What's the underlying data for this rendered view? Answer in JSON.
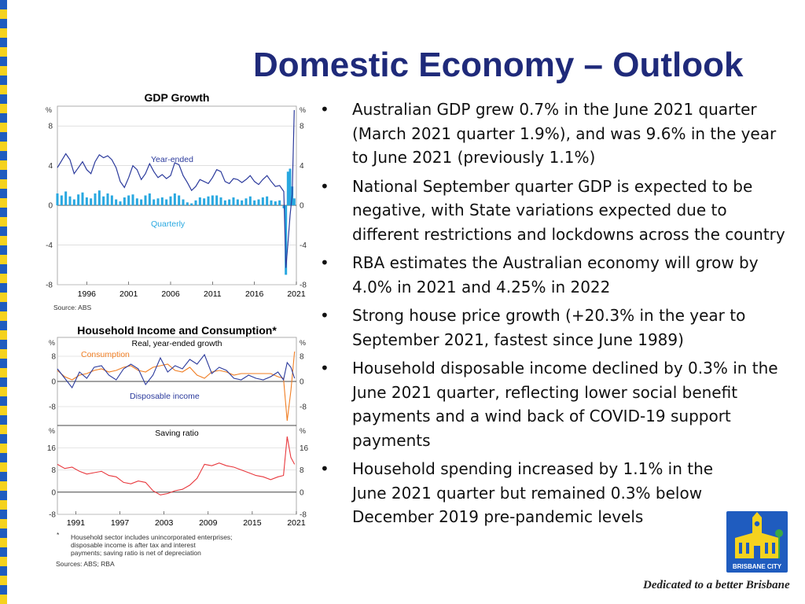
{
  "slide": {
    "title": "Domestic Economy – Outlook",
    "bullets": [
      "Australian GDP grew 0.7% in the June 2021 quarter (March 2021 quarter 1.9%), and was 9.6% in the year to June 2021 (previously 1.1%)",
      "National September quarter GDP is expected to be negative, with State variations expected due to different restrictions and lockdowns across the country",
      "RBA estimates the Australian economy  will grow by 4.0% in 2021 and 4.25% in 2022",
      "Strong house price growth (+20.3% in the year to September 2021, fastest since June 1989)",
      "Household disposable income declined by 0.3% in the June 2021 quarter, reflecting lower social benefit payments and a wind back of COVID-19 support payments",
      "Household spending increased by 1.1% in the June 2021 quarter but remained 0.3% below December 2019 pre-pandemic levels"
    ],
    "bullet_marker": "•",
    "logo_text": "BRISBANE CITY",
    "logo_icon": "city-hall-clock-tower-icon",
    "tagline": "Dedicated to a better Brisbane",
    "colors": {
      "title": "#1f2a7a",
      "edge_blue": "#1f5cbf",
      "edge_yellow": "#f5d21e"
    }
  },
  "chart_data": [
    {
      "type": "bar",
      "title": "GDP Growth",
      "unit_left": "%",
      "unit_right": "%",
      "ylim": [
        -8,
        10
      ],
      "yticks": [
        8,
        4,
        0,
        -4,
        -8
      ],
      "xlim": [
        1993,
        2021.5
      ],
      "xticks": [
        "1996",
        "2001",
        "2006",
        "2011",
        "2016",
        "2021"
      ],
      "source": "Source:   ABS",
      "series": [
        {
          "name": "Year-ended",
          "kind": "line",
          "color": "#2b3a9c",
          "x": [
            1993,
            1993.5,
            1994,
            1994.5,
            1995,
            1995.5,
            1996,
            1996.5,
            1997,
            1997.5,
            1998,
            1998.5,
            1999,
            1999.5,
            2000,
            2000.5,
            2001,
            2001.5,
            2002,
            2002.5,
            2003,
            2003.5,
            2004,
            2004.5,
            2005,
            2005.5,
            2006,
            2006.5,
            2007,
            2007.5,
            2008,
            2008.5,
            2009,
            2009.5,
            2010,
            2010.5,
            2011,
            2011.5,
            2012,
            2012.5,
            2013,
            2013.5,
            2014,
            2014.5,
            2015,
            2015.5,
            2016,
            2016.5,
            2017,
            2017.5,
            2018,
            2018.5,
            2019,
            2019.5,
            2020,
            2020.25,
            2020.5,
            2020.75,
            2021,
            2021.25
          ],
          "y": [
            3.8,
            4.5,
            5.2,
            4.6,
            3.2,
            3.8,
            4.4,
            3.6,
            3.2,
            4.4,
            5.1,
            4.8,
            5.0,
            4.6,
            3.8,
            2.4,
            1.8,
            2.8,
            4.0,
            3.6,
            2.6,
            3.2,
            4.2,
            3.4,
            2.8,
            3.1,
            2.7,
            3.0,
            4.3,
            4.1,
            3.0,
            2.3,
            1.5,
            1.9,
            2.6,
            2.4,
            2.2,
            2.8,
            3.6,
            3.4,
            2.4,
            2.2,
            2.7,
            2.6,
            2.3,
            2.6,
            3.0,
            2.4,
            2.1,
            2.6,
            3.0,
            2.4,
            1.9,
            2.0,
            1.4,
            -6.3,
            -3.8,
            -1.0,
            1.1,
            9.6
          ]
        },
        {
          "name": "Quarterly",
          "kind": "bar",
          "color": "#29a8e0",
          "x": [
            1993,
            1993.5,
            1994,
            1994.5,
            1995,
            1995.5,
            1996,
            1996.5,
            1997,
            1997.5,
            1998,
            1998.5,
            1999,
            1999.5,
            2000,
            2000.5,
            2001,
            2001.5,
            2002,
            2002.5,
            2003,
            2003.5,
            2004,
            2004.5,
            2005,
            2005.5,
            2006,
            2006.5,
            2007,
            2007.5,
            2008,
            2008.5,
            2009,
            2009.5,
            2010,
            2010.5,
            2011,
            2011.5,
            2012,
            2012.5,
            2013,
            2013.5,
            2014,
            2014.5,
            2015,
            2015.5,
            2016,
            2016.5,
            2017,
            2017.5,
            2018,
            2018.5,
            2019,
            2019.5,
            2020,
            2020.25,
            2020.5,
            2020.75,
            2021,
            2021.25
          ],
          "y": [
            1.2,
            1.0,
            1.4,
            0.9,
            0.6,
            1.1,
            1.3,
            0.8,
            0.7,
            1.2,
            1.5,
            0.9,
            1.2,
            1.0,
            0.6,
            0.4,
            0.8,
            1.0,
            1.1,
            0.7,
            0.6,
            1.0,
            1.2,
            0.6,
            0.7,
            0.8,
            0.6,
            0.9,
            1.2,
            1.0,
            0.6,
            0.3,
            0.2,
            0.5,
            0.8,
            0.7,
            0.9,
            1.0,
            1.0,
            0.8,
            0.5,
            0.6,
            0.8,
            0.6,
            0.5,
            0.7,
            0.9,
            0.5,
            0.6,
            0.8,
            0.9,
            0.5,
            0.4,
            0.5,
            -0.3,
            -7.0,
            3.4,
            3.7,
            1.9,
            0.7
          ]
        }
      ]
    },
    {
      "type": "line",
      "title": "Household Income and Consumption*",
      "panels": [
        {
          "subtitle": "Real, year-ended growth",
          "unit_left": "%",
          "unit_right": "%",
          "ylim": [
            -14,
            14
          ],
          "yticks": [
            8,
            0,
            -8
          ],
          "series": [
            {
              "name": "Consumption",
              "color": "#f07d22",
              "x": [
                1989,
                1990,
                1991,
                1992,
                1993,
                1994,
                1995,
                1996,
                1997,
                1998,
                1999,
                2000,
                2001,
                2002,
                2003,
                2004,
                2005,
                2006,
                2007,
                2008,
                2009,
                2010,
                2011,
                2012,
                2013,
                2014,
                2015,
                2016,
                2017,
                2018,
                2019,
                2019.75,
                2020.25,
                2020.75,
                2021.25
              ],
              "y": [
                3.5,
                1.5,
                0.5,
                2.0,
                2.5,
                3.5,
                4.0,
                3.0,
                3.5,
                4.5,
                5.0,
                3.5,
                3.0,
                4.5,
                5.0,
                5.5,
                3.5,
                3.0,
                4.5,
                2.0,
                1.0,
                3.0,
                3.5,
                3.0,
                2.0,
                2.5,
                2.5,
                2.5,
                2.5,
                2.5,
                1.5,
                1.0,
                -12.5,
                -3.0,
                9.5
              ]
            },
            {
              "name": "Disposable income",
              "color": "#2b3a9c",
              "x": [
                1989,
                1990,
                1991,
                1992,
                1993,
                1994,
                1995,
                1996,
                1997,
                1998,
                1999,
                2000,
                2001,
                2002,
                2003,
                2004,
                2005,
                2006,
                2007,
                2008,
                2009,
                2010,
                2011,
                2012,
                2013,
                2014,
                2015,
                2016,
                2017,
                2018,
                2019,
                2019.75,
                2020.25,
                2020.75,
                2021.25
              ],
              "y": [
                4.0,
                1.0,
                -2.0,
                3.0,
                1.0,
                4.5,
                5.0,
                2.0,
                0.5,
                4.0,
                5.5,
                4.0,
                -1.0,
                2.0,
                7.5,
                3.0,
                5.0,
                4.0,
                7.0,
                5.5,
                8.5,
                2.5,
                4.5,
                3.5,
                1.0,
                0.5,
                2.0,
                1.0,
                0.5,
                1.5,
                3.0,
                0.5,
                6.0,
                4.5,
                1.0
              ]
            }
          ]
        },
        {
          "subtitle": "Saving ratio",
          "unit_left": "%",
          "unit_right": "%",
          "ylim": [
            -8,
            24
          ],
          "yticks": [
            16,
            8,
            0,
            -8
          ],
          "series": [
            {
              "name": "",
              "color": "#e8383d",
              "x": [
                1989,
                1990,
                1991,
                1992,
                1993,
                1994,
                1995,
                1996,
                1997,
                1998,
                1999,
                2000,
                2001,
                2002,
                2003,
                2004,
                2005,
                2006,
                2007,
                2008,
                2009,
                2010,
                2011,
                2012,
                2013,
                2014,
                2015,
                2016,
                2017,
                2018,
                2019,
                2019.75,
                2020.25,
                2020.75,
                2021.25
              ],
              "y": [
                10.0,
                8.5,
                9.0,
                7.5,
                6.5,
                7.0,
                7.5,
                6.0,
                5.5,
                3.5,
                3.0,
                4.0,
                3.5,
                0.5,
                -1.0,
                -0.5,
                0.5,
                1.0,
                2.5,
                5.0,
                10.0,
                9.5,
                10.5,
                9.5,
                9.0,
                8.0,
                7.0,
                6.0,
                5.5,
                4.5,
                5.5,
                6.0,
                20.0,
                12.5,
                10.0
              ]
            }
          ]
        }
      ],
      "xlim": [
        1989,
        2021.5
      ],
      "xticks": [
        "1991",
        "1997",
        "2003",
        "2009",
        "2015",
        "2021"
      ],
      "footnote_marker": "*",
      "footnote": "Household sector includes unincorporated enterprises; disposable income is after tax and interest payments; saving ratio is net of depreciation",
      "source": "Sources: ABS; RBA"
    }
  ]
}
